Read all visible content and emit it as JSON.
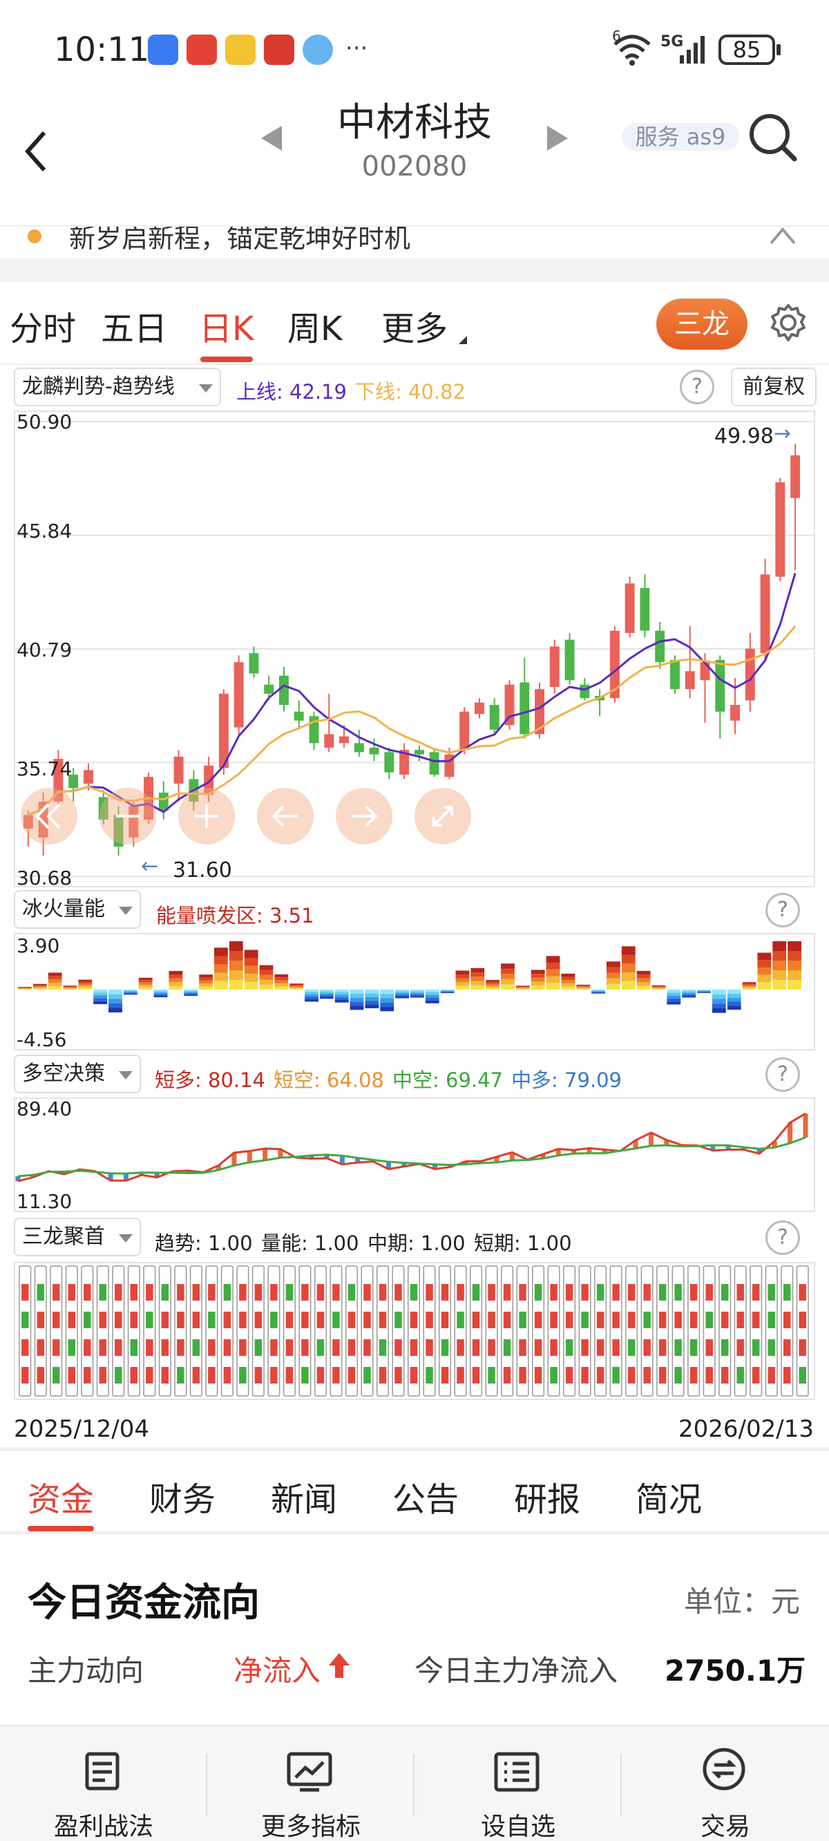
{
  "status": {
    "time": "10:11",
    "battery": "85",
    "signal": "5G",
    "more": "···",
    "wifi_tag": "6"
  },
  "header": {
    "title": "中材科技",
    "code": "002080",
    "service": "服务 as9"
  },
  "banner": {
    "text": "新岁启新程，锚定乾坤好时机"
  },
  "chart_tabs": [
    "分时",
    "五日",
    "日K",
    "周K",
    "更多"
  ],
  "active_chart_tab": "日K",
  "sanlong_button": "三龙",
  "main_indicator": {
    "name": "龙麟判势-趋势线",
    "upper_label": "上线: 42.19",
    "lower_label": "下线: 40.82",
    "adjust": "前复权",
    "help": "?"
  },
  "price_axis": [
    "50.90",
    "45.84",
    "40.79",
    "35.74",
    "30.68"
  ],
  "price_annotations": {
    "high": "49.98",
    "low": "31.60"
  },
  "volume_indicator": {
    "name": "冰火量能",
    "label": "能量喷发区: 3.51",
    "top": "3.90",
    "bottom": "-4.56",
    "help": "?"
  },
  "dk_indicator": {
    "name": "多空决策",
    "short_long": "短多: 80.14",
    "short_short": "短空: 64.08",
    "mid_short": "中空: 69.47",
    "mid_long": "中多: 79.09",
    "top": "89.40",
    "bottom": "11.30",
    "help": "?"
  },
  "sl_indicator": {
    "name": "三龙聚首",
    "trend": "趋势: 1.00",
    "energy": "量能: 1.00",
    "mid": "中期: 1.00",
    "short": "短期: 1.00",
    "help": "?"
  },
  "dates": {
    "start": "2025/12/04",
    "end": "2026/02/13"
  },
  "colors": {
    "up": "#e8625a",
    "down": "#4cb649",
    "accent": "#e34234",
    "ma_fast": "#5b2bbf",
    "ma_slow": "#f0b34a"
  },
  "bottom_tabs": [
    "资金",
    "财务",
    "新闻",
    "公告",
    "研报",
    "简况"
  ],
  "active_bottom_tab": "资金",
  "fund_flow": {
    "title": "今日资金流向",
    "unit": "单位：元",
    "main_dir_label": "主力动向",
    "main_dir_value": "净流入",
    "today_label": "今日主力净流入",
    "today_value": "2750.1万"
  },
  "navbar": [
    {
      "label": "盈利战法",
      "icon": "strategy-icon"
    },
    {
      "label": "更多指标",
      "icon": "chart-icon"
    },
    {
      "label": "设自选",
      "icon": "list-icon"
    },
    {
      "label": "交易",
      "icon": "trade-icon"
    }
  ],
  "chart_data": {
    "type": "candlestick",
    "x_range": [
      "2025/12/04",
      "2026/02/13"
    ],
    "y_ticks": [
      50.9,
      45.84,
      40.79,
      35.74,
      30.68
    ],
    "ylim": [
      30.68,
      50.9
    ],
    "candles": [
      [
        32.8,
        33.4,
        32.0,
        33.6
      ],
      [
        32.4,
        34.0,
        31.6,
        34.4
      ],
      [
        34.0,
        35.9,
        33.8,
        36.3
      ],
      [
        35.2,
        34.6,
        34.0,
        35.5
      ],
      [
        34.8,
        35.4,
        34.5,
        35.7
      ],
      [
        34.2,
        33.2,
        33.0,
        34.5
      ],
      [
        33.4,
        32.0,
        31.6,
        33.8
      ],
      [
        32.4,
        33.8,
        32.0,
        34.0
      ],
      [
        33.2,
        35.1,
        33.0,
        35.3
      ],
      [
        34.4,
        33.6,
        33.2,
        34.9
      ],
      [
        34.8,
        36.0,
        34.0,
        36.3
      ],
      [
        35.0,
        34.0,
        33.6,
        35.4
      ],
      [
        34.3,
        35.6,
        34.0,
        36.0
      ],
      [
        35.5,
        38.8,
        35.2,
        39.0
      ],
      [
        37.3,
        40.2,
        37.0,
        40.5
      ],
      [
        40.6,
        39.7,
        39.5,
        40.9
      ],
      [
        39.2,
        38.8,
        38.5,
        39.6
      ],
      [
        39.6,
        38.3,
        38.0,
        40.0
      ],
      [
        38.0,
        37.6,
        37.2,
        38.5
      ],
      [
        37.8,
        36.6,
        36.3,
        38.0
      ],
      [
        36.4,
        37.0,
        36.2,
        38.8
      ],
      [
        36.6,
        36.9,
        36.4,
        37.4
      ],
      [
        36.6,
        36.2,
        36.0,
        37.2
      ],
      [
        36.4,
        36.1,
        35.8,
        36.8
      ],
      [
        36.2,
        35.3,
        35.0,
        36.4
      ],
      [
        35.2,
        36.3,
        35.0,
        36.6
      ],
      [
        36.3,
        36.1,
        35.8,
        36.5
      ],
      [
        36.2,
        35.2,
        35.1,
        36.4
      ],
      [
        35.1,
        36.1,
        35.0,
        36.4
      ],
      [
        36.3,
        38.0,
        36.1,
        38.2
      ],
      [
        37.9,
        38.4,
        37.7,
        38.6
      ],
      [
        38.3,
        37.2,
        37.0,
        38.6
      ],
      [
        37.4,
        39.2,
        37.2,
        39.4
      ],
      [
        39.3,
        37.0,
        36.8,
        40.4
      ],
      [
        37.0,
        39.0,
        36.8,
        39.3
      ],
      [
        39.1,
        40.9,
        38.8,
        41.2
      ],
      [
        41.2,
        39.4,
        39.2,
        41.5
      ],
      [
        39.2,
        38.6,
        38.5,
        39.5
      ],
      [
        38.7,
        38.5,
        37.8,
        39.0
      ],
      [
        38.6,
        41.6,
        38.4,
        41.8
      ],
      [
        41.5,
        43.7,
        41.3,
        44.0
      ],
      [
        43.5,
        41.6,
        41.3,
        44.1
      ],
      [
        41.6,
        40.2,
        39.9,
        42.0
      ],
      [
        40.3,
        39.0,
        38.8,
        40.5
      ],
      [
        39.0,
        39.8,
        38.6,
        41.8
      ],
      [
        39.4,
        40.2,
        37.5,
        40.6
      ],
      [
        40.3,
        38.0,
        36.8,
        40.5
      ],
      [
        37.6,
        38.3,
        37.0,
        39.5
      ],
      [
        38.5,
        40.8,
        38.0,
        41.5
      ],
      [
        40.6,
        44.1,
        40.3,
        44.8
      ],
      [
        44.0,
        48.2,
        43.8,
        48.4
      ],
      [
        47.5,
        49.4,
        44.3,
        49.9
      ]
    ],
    "ma_fast_label": "上线",
    "ma_slow_label": "下线"
  }
}
